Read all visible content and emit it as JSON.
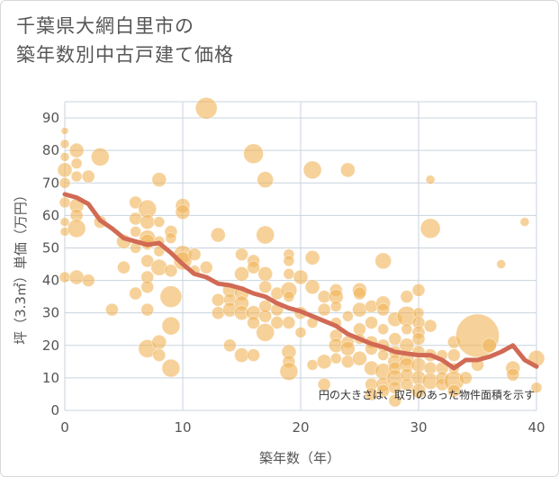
{
  "header": {
    "title_line1": "千葉県大網白里市の",
    "title_line2": "築年数別中古戸建て価格"
  },
  "chart_data": {
    "type": "scatter",
    "xlabel": "築年数（年）",
    "ylabel": "坪（3.3㎡）単価（万円）",
    "xlim": [
      0,
      40
    ],
    "ylim": [
      0,
      95
    ],
    "x_ticks": [
      "0",
      "10",
      "20",
      "30",
      "40"
    ],
    "y_ticks": [
      "0",
      "10",
      "20",
      "30",
      "40",
      "50",
      "60",
      "70",
      "80",
      "90"
    ],
    "grid": true,
    "note": "円の大きさは、取引のあった物件面積を示す",
    "colors": {
      "bubble": "#f0b45a",
      "trend": "#d16a55",
      "grid": "#c8d3dd"
    },
    "bubbles": [
      [
        0,
        86,
        4
      ],
      [
        0,
        82,
        5
      ],
      [
        0,
        78,
        5
      ],
      [
        0,
        74,
        8
      ],
      [
        0,
        70,
        6
      ],
      [
        0,
        64,
        6
      ],
      [
        0,
        58,
        5
      ],
      [
        0,
        55,
        5
      ],
      [
        0,
        41,
        6
      ],
      [
        1,
        80,
        8
      ],
      [
        1,
        76,
        6
      ],
      [
        1,
        63,
        8
      ],
      [
        1,
        60,
        7
      ],
      [
        1,
        56,
        10
      ],
      [
        1,
        41,
        8
      ],
      [
        1,
        72,
        6
      ],
      [
        2,
        72,
        7
      ],
      [
        2,
        40,
        7
      ],
      [
        3,
        78,
        10
      ],
      [
        3,
        58,
        7
      ],
      [
        4,
        31,
        7
      ],
      [
        5,
        52,
        8
      ],
      [
        5,
        44,
        7
      ],
      [
        6,
        64,
        7
      ],
      [
        6,
        59,
        7
      ],
      [
        6,
        50,
        6
      ],
      [
        6,
        36,
        7
      ],
      [
        6,
        55,
        6
      ],
      [
        7,
        62,
        10
      ],
      [
        7,
        58,
        8
      ],
      [
        7,
        53,
        9
      ],
      [
        7,
        51,
        6
      ],
      [
        7,
        46,
        7
      ],
      [
        7,
        41,
        7
      ],
      [
        7,
        31,
        7
      ],
      [
        7,
        19,
        10
      ],
      [
        7,
        52,
        8
      ],
      [
        7,
        38,
        7
      ],
      [
        8,
        71,
        8
      ],
      [
        8,
        58,
        6
      ],
      [
        8,
        52,
        6
      ],
      [
        8,
        44,
        9
      ],
      [
        8,
        49,
        6
      ],
      [
        8,
        21,
        8
      ],
      [
        8,
        17,
        7
      ],
      [
        9,
        55,
        7
      ],
      [
        9,
        53,
        6
      ],
      [
        9,
        43,
        7
      ],
      [
        9,
        35,
        12
      ],
      [
        9,
        26,
        10
      ],
      [
        9,
        13,
        10
      ],
      [
        10,
        63,
        8
      ],
      [
        10,
        61,
        8
      ],
      [
        10,
        48,
        10
      ],
      [
        10,
        46,
        10
      ],
      [
        11,
        48,
        7
      ],
      [
        11,
        43,
        6
      ],
      [
        12,
        93,
        12
      ],
      [
        12,
        44,
        7
      ],
      [
        13,
        54,
        8
      ],
      [
        13,
        34,
        7
      ],
      [
        13,
        30,
        7
      ],
      [
        14,
        37,
        8
      ],
      [
        14,
        34,
        7
      ],
      [
        14,
        31,
        8
      ],
      [
        14,
        20,
        7
      ],
      [
        15,
        48,
        7
      ],
      [
        15,
        42,
        8
      ],
      [
        15,
        36,
        8
      ],
      [
        15,
        33,
        8
      ],
      [
        15,
        30,
        8
      ],
      [
        15,
        17,
        8
      ],
      [
        16,
        79,
        11
      ],
      [
        16,
        46,
        7
      ],
      [
        16,
        44,
        7
      ],
      [
        16,
        30,
        8
      ],
      [
        16,
        27,
        7
      ],
      [
        16,
        17,
        7
      ],
      [
        17,
        71,
        9
      ],
      [
        17,
        54,
        10
      ],
      [
        17,
        42,
        8
      ],
      [
        17,
        38,
        7
      ],
      [
        17,
        29,
        7
      ],
      [
        17,
        24,
        10
      ],
      [
        17,
        32,
        7
      ],
      [
        18,
        36,
        7
      ],
      [
        18,
        31,
        7
      ],
      [
        18,
        27,
        7
      ],
      [
        19,
        48,
        6
      ],
      [
        19,
        46,
        6
      ],
      [
        19,
        42,
        6
      ],
      [
        19,
        37,
        9
      ],
      [
        19,
        35,
        6
      ],
      [
        19,
        27,
        7
      ],
      [
        19,
        18,
        8
      ],
      [
        19,
        15,
        7
      ],
      [
        19,
        12,
        10
      ],
      [
        20,
        41,
        8
      ],
      [
        20,
        30,
        7
      ],
      [
        20,
        24,
        6
      ],
      [
        21,
        74,
        10
      ],
      [
        21,
        47,
        8
      ],
      [
        21,
        38,
        8
      ],
      [
        21,
        27,
        6
      ],
      [
        21,
        14,
        6
      ],
      [
        22,
        35,
        7
      ],
      [
        22,
        31,
        7
      ],
      [
        22,
        15,
        8
      ],
      [
        22,
        8,
        7
      ],
      [
        23,
        37,
        7
      ],
      [
        23,
        35,
        8
      ],
      [
        23,
        32,
        6
      ],
      [
        23,
        27,
        6
      ],
      [
        23,
        23,
        7
      ],
      [
        23,
        20,
        8
      ],
      [
        23,
        16,
        6
      ],
      [
        24,
        74,
        8
      ],
      [
        24,
        29,
        6
      ],
      [
        24,
        21,
        7
      ],
      [
        24,
        19,
        8
      ],
      [
        24,
        15,
        7
      ],
      [
        25,
        37,
        8
      ],
      [
        25,
        36,
        7
      ],
      [
        25,
        31,
        8
      ],
      [
        25,
        25,
        7
      ],
      [
        25,
        22,
        6
      ],
      [
        25,
        16,
        8
      ],
      [
        26,
        32,
        7
      ],
      [
        26,
        27,
        7
      ],
      [
        26,
        21,
        7
      ],
      [
        26,
        19,
        7
      ],
      [
        26,
        13,
        8
      ],
      [
        26,
        8,
        7
      ],
      [
        26,
        5,
        7
      ],
      [
        27,
        46,
        9
      ],
      [
        27,
        33,
        8
      ],
      [
        27,
        31,
        7
      ],
      [
        27,
        25,
        6
      ],
      [
        27,
        20,
        7
      ],
      [
        27,
        17,
        6
      ],
      [
        27,
        12,
        9
      ],
      [
        27,
        8,
        8
      ],
      [
        27,
        6,
        7
      ],
      [
        28,
        28,
        8
      ],
      [
        28,
        22,
        7
      ],
      [
        28,
        18,
        7
      ],
      [
        28,
        15,
        8
      ],
      [
        28,
        13,
        7
      ],
      [
        28,
        10,
        9
      ],
      [
        28,
        7,
        7
      ],
      [
        28,
        3,
        7
      ],
      [
        29,
        35,
        7
      ],
      [
        29,
        29,
        11
      ],
      [
        29,
        25,
        6
      ],
      [
        29,
        20,
        8
      ],
      [
        29,
        16,
        8
      ],
      [
        29,
        14,
        8
      ],
      [
        29,
        11,
        7
      ],
      [
        29,
        8,
        7
      ],
      [
        30,
        37,
        7
      ],
      [
        30,
        30,
        6
      ],
      [
        30,
        27,
        7
      ],
      [
        30,
        24,
        7
      ],
      [
        30,
        22,
        7
      ],
      [
        30,
        18,
        7
      ],
      [
        30,
        14,
        8
      ],
      [
        30,
        10,
        8
      ],
      [
        30,
        6,
        8
      ],
      [
        31,
        71,
        5
      ],
      [
        31,
        56,
        11
      ],
      [
        31,
        26,
        7
      ],
      [
        31,
        17,
        7
      ],
      [
        31,
        13,
        7
      ],
      [
        31,
        9,
        9
      ],
      [
        32,
        17,
        6
      ],
      [
        32,
        13,
        7
      ],
      [
        32,
        10,
        7
      ],
      [
        32,
        8,
        7
      ],
      [
        33,
        21,
        7
      ],
      [
        33,
        17,
        7
      ],
      [
        33,
        13,
        6
      ],
      [
        33,
        9,
        11
      ],
      [
        33,
        6,
        7
      ],
      [
        34,
        10,
        7
      ],
      [
        35,
        23,
        24
      ],
      [
        35,
        14,
        7
      ],
      [
        36,
        20,
        8
      ],
      [
        37,
        45,
        5
      ],
      [
        38,
        13,
        8
      ],
      [
        38,
        11,
        7
      ],
      [
        39,
        58,
        5
      ],
      [
        40,
        16,
        9
      ],
      [
        40,
        7,
        6
      ]
    ],
    "trend": [
      [
        0,
        66.5
      ],
      [
        1,
        65.5
      ],
      [
        2,
        63.5
      ],
      [
        3,
        58.5
      ],
      [
        4,
        56
      ],
      [
        5,
        53
      ],
      [
        6,
        52
      ],
      [
        7,
        51
      ],
      [
        8,
        51.5
      ],
      [
        9,
        48.5
      ],
      [
        10,
        45
      ],
      [
        11,
        42
      ],
      [
        12,
        41
      ],
      [
        13,
        39
      ],
      [
        14,
        38.5
      ],
      [
        15,
        37.5
      ],
      [
        16,
        36
      ],
      [
        17,
        35
      ],
      [
        18,
        33
      ],
      [
        19,
        31.5
      ],
      [
        20,
        30.5
      ],
      [
        21,
        29
      ],
      [
        22,
        27.5
      ],
      [
        23,
        26
      ],
      [
        24,
        23.5
      ],
      [
        25,
        22
      ],
      [
        26,
        20.5
      ],
      [
        27,
        19.5
      ],
      [
        28,
        18
      ],
      [
        29,
        17.5
      ],
      [
        30,
        17
      ],
      [
        31,
        17
      ],
      [
        32,
        15.5
      ],
      [
        33,
        13
      ],
      [
        34,
        15.5
      ],
      [
        35,
        15.5
      ],
      [
        36,
        16.5
      ],
      [
        37,
        18
      ],
      [
        38,
        20
      ],
      [
        39,
        15.5
      ],
      [
        40,
        13.5
      ]
    ]
  }
}
